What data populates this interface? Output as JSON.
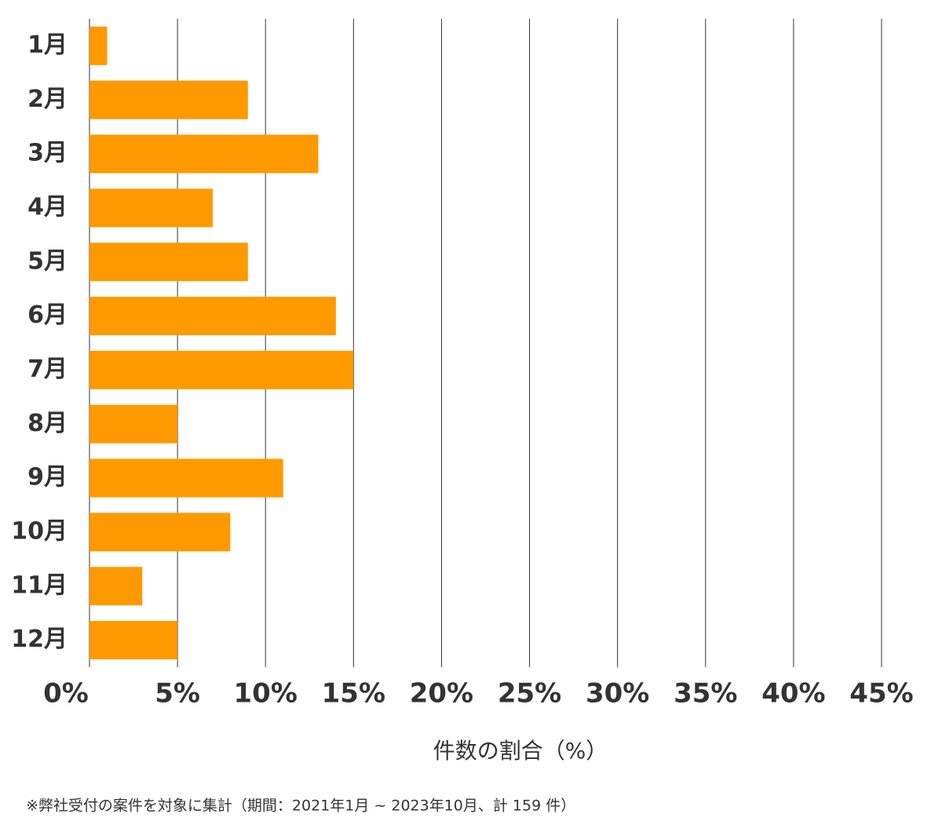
{
  "chart_data": {
    "type": "bar",
    "orientation": "horizontal",
    "categories": [
      "1月",
      "2月",
      "3月",
      "4月",
      "5月",
      "6月",
      "7月",
      "8月",
      "9月",
      "10月",
      "11月",
      "12月"
    ],
    "values": [
      1,
      9,
      13,
      7,
      9,
      14,
      15,
      5,
      11,
      8,
      3,
      5
    ],
    "color": "#ff9900",
    "xlim": [
      0,
      45
    ],
    "xticks": [
      {
        "value": 0,
        "label": "0%"
      },
      {
        "value": 5,
        "label": "5%"
      },
      {
        "value": 10,
        "label": "10%"
      },
      {
        "value": 15,
        "label": "15%"
      },
      {
        "value": 20,
        "label": "20%"
      },
      {
        "value": 25,
        "label": "25%"
      },
      {
        "value": 30,
        "label": "30%"
      },
      {
        "value": 35,
        "label": "35%"
      },
      {
        "value": 40,
        "label": "40%"
      },
      {
        "value": 45,
        "label": "45%"
      }
    ],
    "grid": true,
    "xlabel": "件数の割合（%）",
    "footnote": "※弊社受付の案件を対象に集計（期間：2021年1月 ~ 2023年10月、計 159 件）"
  }
}
